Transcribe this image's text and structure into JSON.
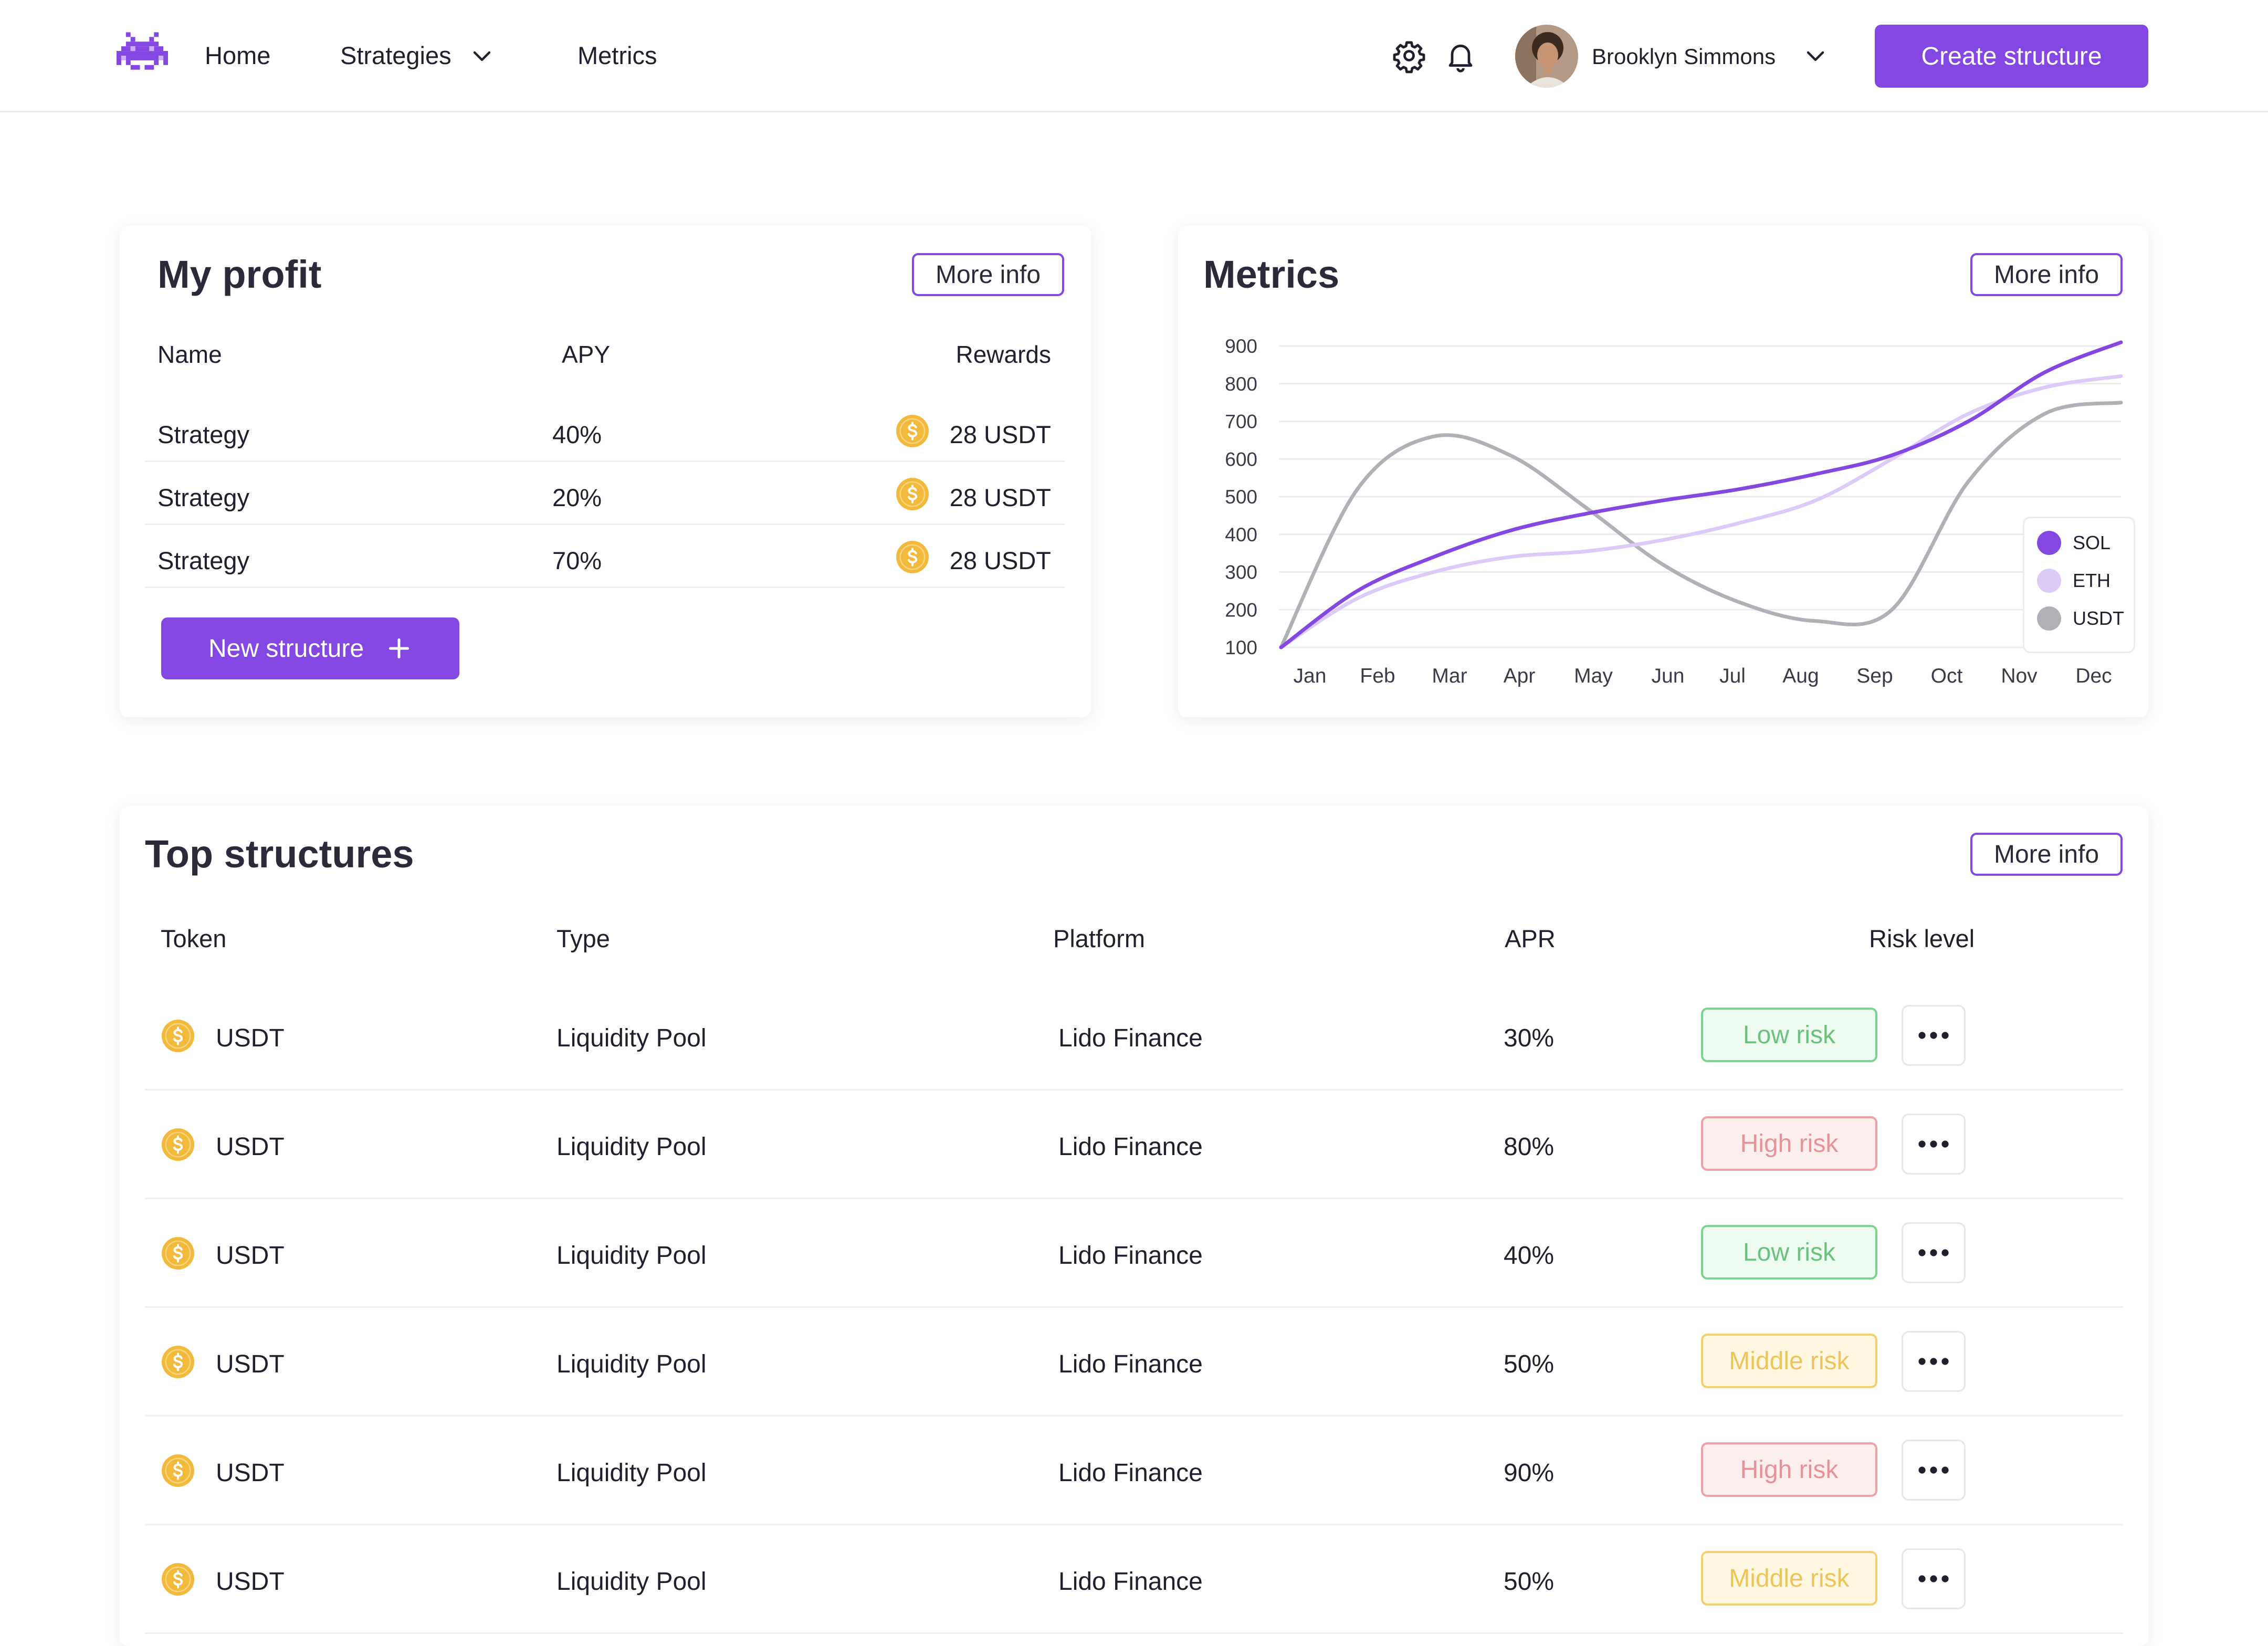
{
  "header": {
    "nav": [
      {
        "label": "Home"
      },
      {
        "label": "Strategies"
      },
      {
        "label": "Metrics"
      }
    ],
    "user_name": "Brooklyn Simmons",
    "create_button": "Create structure"
  },
  "profit": {
    "title": "My profit",
    "more_info": "More info",
    "columns": {
      "name": "Name",
      "apy": "APY",
      "rewards": "Rewards"
    },
    "rows": [
      {
        "name": "Strategy",
        "apy": "40%",
        "rewards": "28 USDT"
      },
      {
        "name": "Strategy",
        "apy": "20%",
        "rewards": "28 USDT"
      },
      {
        "name": "Strategy",
        "apy": "70%",
        "rewards": "28 USDT"
      }
    ],
    "new_button": "New structure"
  },
  "metrics": {
    "title": "Metrics",
    "more_info": "More info"
  },
  "chart_data": {
    "type": "line",
    "title": "",
    "xlabel": "",
    "ylabel": "",
    "x": [
      "Jan",
      "Feb",
      "Mar",
      "Apr",
      "May",
      "Jun",
      "Jul",
      "Aug",
      "Sep",
      "Oct",
      "Nov",
      "Dec"
    ],
    "y_ticks": [
      100,
      200,
      300,
      400,
      500,
      600,
      700,
      800,
      900
    ],
    "ylim": [
      100,
      900
    ],
    "grid": true,
    "legend_position": "right",
    "series": [
      {
        "name": "SOL",
        "color": "#8447e2",
        "values": [
          100,
          250,
          340,
          410,
          455,
          490,
          520,
          560,
          610,
          700,
          830,
          960
        ]
      },
      {
        "name": "ETH",
        "color": "#dccaf8",
        "values": [
          100,
          230,
          300,
          340,
          355,
          385,
          430,
          490,
          600,
          720,
          790,
          820
        ]
      },
      {
        "name": "USDT",
        "color": "#b0b0b6",
        "values": [
          100,
          520,
          660,
          610,
          470,
          320,
          220,
          170,
          200,
          540,
          720,
          750
        ]
      }
    ]
  },
  "structures": {
    "title": "Top structures",
    "more_info": "More info",
    "columns": {
      "token": "Token",
      "type": "Type",
      "platform": "Platform",
      "apr": "APR",
      "risk": "Risk level"
    },
    "rows": [
      {
        "token": "USDT",
        "type": "Liquidity Pool",
        "platform": "Lido Finance",
        "apr": "30%",
        "risk": "Low risk",
        "risk_level": "low"
      },
      {
        "token": "USDT",
        "type": "Liquidity Pool",
        "platform": "Lido Finance",
        "apr": "80%",
        "risk": "High risk",
        "risk_level": "high"
      },
      {
        "token": "USDT",
        "type": "Liquidity Pool",
        "platform": "Lido Finance",
        "apr": "40%",
        "risk": "Low risk",
        "risk_level": "low"
      },
      {
        "token": "USDT",
        "type": "Liquidity Pool",
        "platform": "Lido Finance",
        "apr": "50%",
        "risk": "Middle risk",
        "risk_level": "middle"
      },
      {
        "token": "USDT",
        "type": "Liquidity Pool",
        "platform": "Lido Finance",
        "apr": "90%",
        "risk": "High risk",
        "risk_level": "high"
      },
      {
        "token": "USDT",
        "type": "Liquidity Pool",
        "platform": "Lido Finance",
        "apr": "50%",
        "risk": "Middle risk",
        "risk_level": "middle"
      }
    ]
  },
  "icons": {
    "logo": "space-invader-logo",
    "settings": "gear-icon",
    "notifications": "bell-icon",
    "chevron": "chevron-down-icon",
    "coin": "dollar-coin-icon",
    "plus": "plus-icon",
    "more": "more-dots-icon"
  },
  "colors": {
    "accent": "#8447e2",
    "coin": "#f2b93b",
    "low_risk": "#6cc17f",
    "high_risk": "#e59399",
    "middle_risk": "#eec45a"
  }
}
